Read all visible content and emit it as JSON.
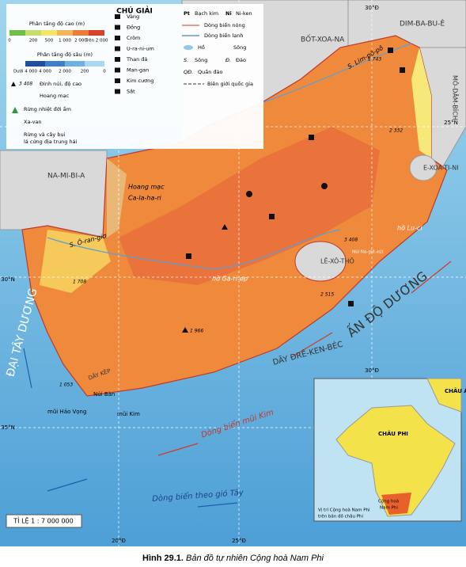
{
  "legend": {
    "title": "CHÚ GIẢI",
    "elevation_title": "Phân tầng độ cao (m)",
    "elevation_ticks": [
      "0",
      "200",
      "500",
      "1 000",
      "2 000",
      "Trên 2 000"
    ],
    "depth_title": "Phân tầng độ sâu (m)",
    "depth_ticks": [
      "Dưới 4 000",
      "4 000",
      "2 000",
      "200",
      "0"
    ],
    "peak_value": "3 408",
    "peak": "Đỉnh núi, độ cao",
    "desert": "Hoang mạc",
    "rainforest": "Rừng nhiệt đới ẩm",
    "savanna": "Xa-van",
    "mediterranean": [
      "Rừng và cây bụi",
      "lá cứng địa trung hải"
    ],
    "minerals": [
      "Vàng",
      "Đồng",
      "Crôm",
      "U-ra-ni-um",
      "Than đá",
      "Man-gan",
      "Kim cương",
      "Sắt"
    ],
    "pt_symbol": "Pt",
    "pt": "Bạch kim",
    "ni_symbol": "Ni",
    "ni": "Ni-ken",
    "warm_current": "Dòng biển nóng",
    "cold_current": "Dòng biển lạnh",
    "lake": "Hồ",
    "river": "Sông",
    "river_abbr": "S.",
    "river_word": "Sông",
    "island_abbr": "Đ.",
    "island": "Đảo",
    "archipelago_abbr": "QĐ.",
    "archipelago": "Quần đảo",
    "border": "Biên giới quốc gia"
  },
  "map": {
    "labels": [
      "BỐT-XOA-NA",
      "DIM-BA-BU-Ê",
      "MÔ-DĂM-BÍCH",
      "NA-MI-BI-A",
      "E-XOA-TI-NI",
      "LÊ-XÔ-THÔ",
      "Hoang mạc",
      "Ca-la-ha-ri",
      "S. Lim-pô-pô",
      "hồ Ga-ri-ep",
      "S. Ô-ran-giơ",
      "hồ Lu-ci",
      "Núi Na-giê-xút",
      "3 408",
      "1 743",
      "2 332",
      "2 515",
      "1 708",
      "1 966",
      "1 053",
      "DÃY ĐRÊ-KEN-BÉC",
      "DÃY KÊP",
      "Núi Bàn",
      "mũi Hảo Vọng",
      "mũi Kim",
      "ẤN ĐỘ DƯƠNG",
      "ĐẠI TÂY DƯƠNG",
      "Dòng biển mũi Kim",
      "Dòng biển theo gió Tây"
    ],
    "grid_labels": [
      "30°Đ",
      "25°N",
      "30°N",
      "35°N",
      "20°Đ",
      "25°Đ",
      "30°Đ"
    ],
    "scale": "TỈ LỆ 1 : 7 000 000"
  },
  "inset": {
    "labels": [
      "CHÂU Á",
      "CHÂU PHI",
      "Cộng hoà",
      "Nam Phi"
    ],
    "caption": [
      "Vị trí Cộng hoà Nam Phi",
      "trên bản đồ châu Phi"
    ]
  },
  "caption": {
    "number": "Hình 29.1.",
    "title": "Bản đồ tự nhiên Cộng hoà Nam Phi"
  }
}
